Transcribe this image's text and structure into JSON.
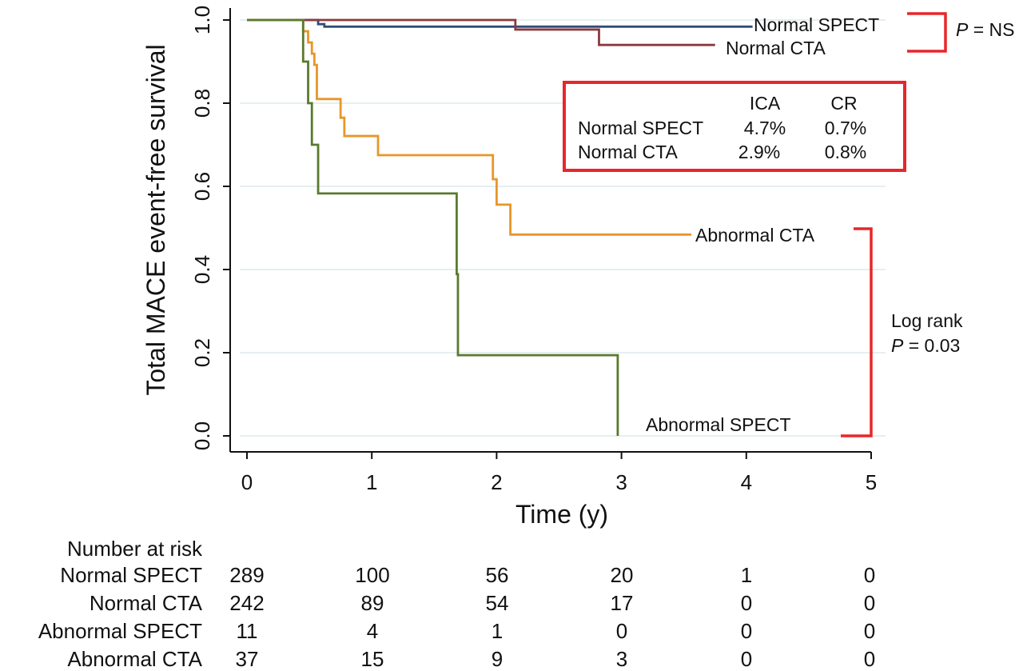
{
  "chart_data": {
    "type": "line",
    "step": true,
    "xlabel": "Time (y)",
    "ylabel": "Total MACE event-free survival",
    "xlim": [
      0,
      5
    ],
    "ylim": [
      0,
      1
    ],
    "x_ticks": [
      "0",
      "1",
      "2",
      "3",
      "4",
      "5"
    ],
    "y_ticks": [
      "0.0",
      "0.2",
      "0.4",
      "0.6",
      "0.8",
      "1.0"
    ],
    "grid": "horizontal",
    "series": [
      {
        "name": "Normal SPECT",
        "color": "#2e4f7a",
        "x": [
          0,
          0.45,
          0.57,
          0.62,
          4.05
        ],
        "y": [
          1.0,
          1.0,
          0.99,
          0.984,
          0.984
        ]
      },
      {
        "name": "Normal CTA",
        "color": "#8b3a3e",
        "x": [
          0,
          2.15,
          2.82,
          3.75
        ],
        "y": [
          1.0,
          0.977,
          0.94,
          0.94
        ]
      },
      {
        "name": "Abnormal CTA",
        "color": "#e8962a",
        "x": [
          0,
          0.45,
          0.49,
          0.52,
          0.54,
          0.56,
          0.75,
          0.78,
          1.05,
          1.97,
          2.0,
          2.11,
          3.56
        ],
        "y": [
          1.0,
          0.973,
          0.946,
          0.919,
          0.892,
          0.81,
          0.765,
          0.721,
          0.675,
          0.617,
          0.556,
          0.484,
          0.484
        ]
      },
      {
        "name": "Abnormal SPECT",
        "color": "#5a7a2e",
        "x": [
          0,
          0.45,
          0.49,
          0.52,
          0.57,
          1.68,
          1.69,
          2.97,
          2.97
        ],
        "y": [
          1.0,
          0.9,
          0.8,
          0.7,
          0.583,
          0.389,
          0.194,
          0.194,
          0.0
        ]
      }
    ],
    "annotations": {
      "ns_p": "P",
      "ns_text": " = NS",
      "logrank_line1": "Log rank",
      "logrank_p": "P",
      "logrank_text": " = 0.03",
      "label_normal_spect": "Normal SPECT",
      "label_normal_cta": "Normal CTA",
      "label_abnormal_cta": "Abnormal CTA",
      "label_abnormal_spect": "Abnormal SPECT"
    },
    "inset_table": {
      "headers": [
        "ICA",
        "CR"
      ],
      "rows": [
        {
          "label": "Normal SPECT",
          "ica": "4.7%",
          "cr": "0.7%"
        },
        {
          "label": "Normal CTA",
          "ica": "2.9%",
          "cr": "0.8%"
        }
      ]
    },
    "bracket_color": "#e8262a"
  },
  "risk_table": {
    "title": "Number at risk",
    "rows": [
      {
        "label": "Normal SPECT",
        "values": [
          "289",
          "100",
          "56",
          "20",
          "1",
          "0"
        ]
      },
      {
        "label": "Normal CTA",
        "values": [
          "242",
          "89",
          "54",
          "17",
          "0",
          "0"
        ]
      },
      {
        "label": "Abnormal SPECT",
        "values": [
          "11",
          "4",
          "1",
          "0",
          "0",
          "0"
        ]
      },
      {
        "label": "Abnormal CTA",
        "values": [
          "37",
          "15",
          "9",
          "3",
          "0",
          "0"
        ]
      }
    ]
  }
}
